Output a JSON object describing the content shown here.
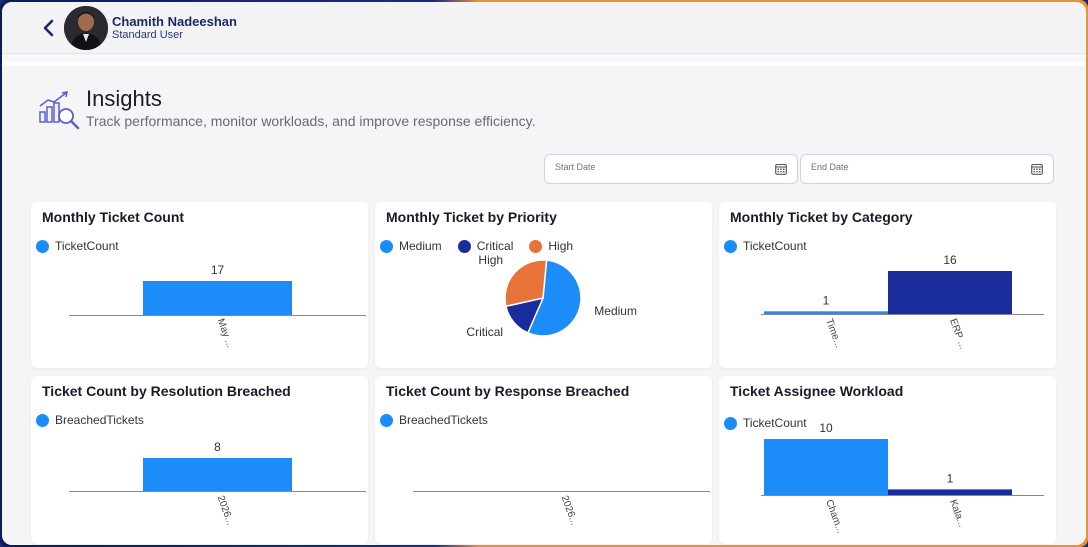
{
  "user": {
    "name": "Chamith Nadeeshan",
    "role": "Standard User"
  },
  "page": {
    "title": "Insights",
    "subtitle": "Track performance, monitor workloads, and improve response efficiency."
  },
  "filters": {
    "start_date_placeholder": "Start Date",
    "end_date_placeholder": "End Date"
  },
  "colors": {
    "blue": "#1b8cf8",
    "navy": "#1a2b9c",
    "orange": "#e8733a",
    "axis": "#888888"
  },
  "cards": {
    "monthly_count": {
      "title": "Monthly Ticket Count",
      "legend": "TicketCount"
    },
    "priority": {
      "title": "Monthly Ticket by Priority",
      "legend": [
        "Medium",
        "Critical",
        "High"
      ]
    },
    "category": {
      "title": "Monthly Ticket by Category",
      "legend": "TicketCount"
    },
    "resolution": {
      "title": "Ticket Count by Resolution Breached",
      "legend": "BreachedTickets"
    },
    "response": {
      "title": "Ticket Count by Response Breached",
      "legend": "BreachedTickets"
    },
    "assignee": {
      "title": "Ticket Assignee Workload",
      "legend": "TicketCount"
    }
  },
  "chart_data": [
    {
      "type": "bar",
      "title": "Monthly Ticket Count",
      "categories": [
        "May ..."
      ],
      "series": [
        {
          "name": "TicketCount",
          "values": [
            17
          ]
        }
      ]
    },
    {
      "type": "pie",
      "title": "Monthly Ticket by Priority",
      "labels": [
        "Medium",
        "Critical",
        "High"
      ],
      "values": [
        55,
        15,
        30
      ]
    },
    {
      "type": "bar",
      "title": "Monthly Ticket by Category",
      "categories": [
        "Time...",
        "ERP ..."
      ],
      "series": [
        {
          "name": "TicketCount",
          "values": [
            1,
            16
          ]
        }
      ]
    },
    {
      "type": "bar",
      "title": "Ticket Count by Resolution Breached",
      "categories": [
        "2026..."
      ],
      "series": [
        {
          "name": "BreachedTickets",
          "values": [
            8
          ]
        }
      ]
    },
    {
      "type": "bar",
      "title": "Ticket Count by Response Breached",
      "categories": [
        "2026..."
      ],
      "series": [
        {
          "name": "BreachedTickets",
          "values": [
            0
          ]
        }
      ]
    },
    {
      "type": "bar",
      "title": "Ticket Assignee Workload",
      "categories": [
        "Cham...",
        "Kala..."
      ],
      "series": [
        {
          "name": "TicketCount",
          "values": [
            10,
            1
          ]
        }
      ]
    }
  ]
}
